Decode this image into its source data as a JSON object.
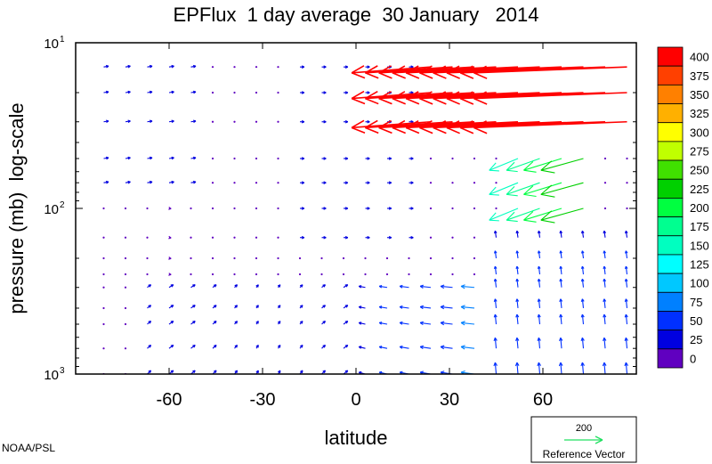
{
  "chart_data": {
    "type": "vector-field",
    "title": "EPFlux  1 day average  30 January   2014",
    "xlabel": "latitude",
    "ylabel": "pressure (mb)  log-scale",
    "x_range": [
      -90,
      90
    ],
    "y_range": [
      1000,
      10
    ],
    "y_scale": "log",
    "x_ticks": [
      -60,
      -30,
      0,
      30,
      60
    ],
    "x_tick_labels": [
      "-60",
      "-30",
      "0",
      "30",
      "60"
    ],
    "y_ticks": [
      {
        "value": 10,
        "base": "10",
        "exp": "1"
      },
      {
        "value": 100,
        "base": "10",
        "exp": "2"
      },
      {
        "value": 1000,
        "base": "10",
        "exp": "3"
      }
    ],
    "colorbar": {
      "labels": [
        "400",
        "375",
        "350",
        "325",
        "300",
        "275",
        "250",
        "225",
        "200",
        "175",
        "150",
        "125",
        "100",
        "75",
        "50",
        "25",
        "0"
      ],
      "colors": [
        "#ff0000",
        "#ff4000",
        "#ff8000",
        "#ffb000",
        "#ffff00",
        "#c0ff00",
        "#40e000",
        "#00d000",
        "#00ff40",
        "#00ff90",
        "#00ffc0",
        "#00ffff",
        "#00c8ff",
        "#0080ff",
        "#0030ff",
        "#0000e0",
        "#6000c0"
      ]
    },
    "reference_vector": {
      "value": "200",
      "label": "Reference Vector"
    },
    "credit": "NOAA/PSL"
  }
}
